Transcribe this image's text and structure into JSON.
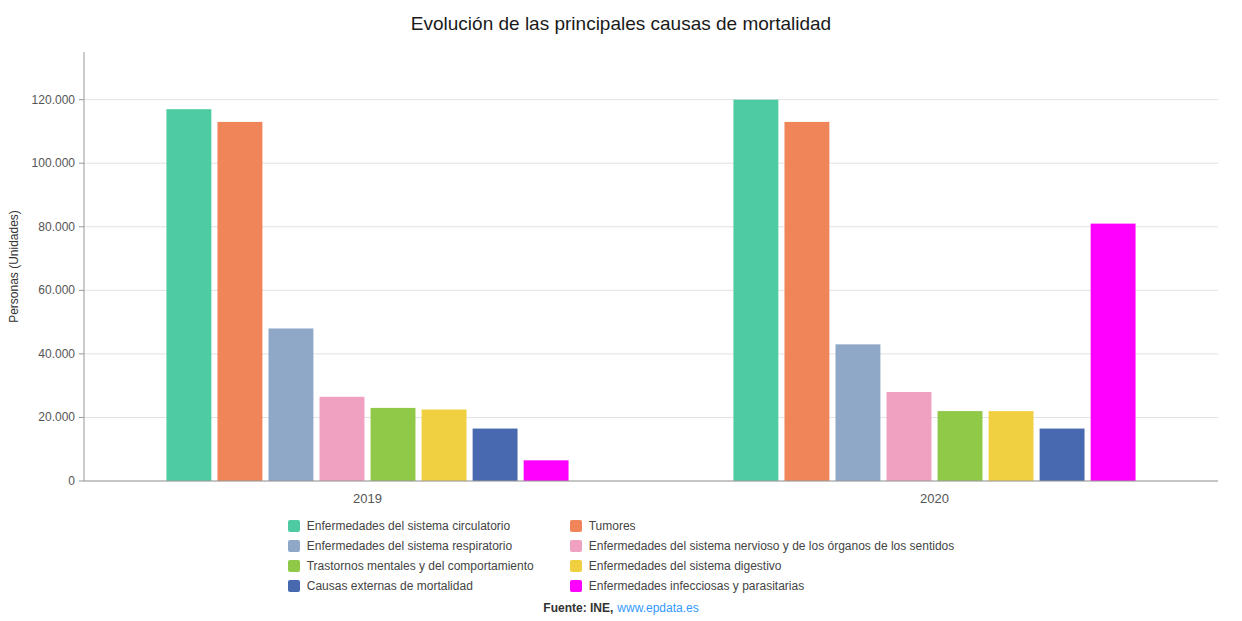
{
  "chart_data": {
    "type": "bar",
    "title": "Evolución de las principales causas de mortalidad",
    "y_label": "Personas (Unidades)",
    "categories": [
      "2019",
      "2020"
    ],
    "series": [
      {
        "name": "Enfermedades del sistema circulatorio",
        "color": "#4ecba3",
        "values": [
          117000,
          120000
        ]
      },
      {
        "name": "Tumores",
        "color": "#f0855a",
        "values": [
          113000,
          113000
        ]
      },
      {
        "name": "Enfermedades del sistema respiratorio",
        "color": "#8fa8c8",
        "values": [
          48000,
          43000
        ]
      },
      {
        "name": "Enfermedades del sistema nervioso y de los órganos de los sentidos",
        "color": "#f0a0c0",
        "values": [
          26500,
          28000
        ]
      },
      {
        "name": "Trastornos mentales y del comportamiento",
        "color": "#90c848",
        "values": [
          23000,
          22000
        ]
      },
      {
        "name": "Enfermedades del sistema digestivo",
        "color": "#f0d040",
        "values": [
          22500,
          22000
        ]
      },
      {
        "name": "Causas externas de mortalidad",
        "color": "#4868b0",
        "values": [
          16500,
          16500
        ]
      },
      {
        "name": "Enfermedades infecciosas y parasitarias",
        "color": "#ff00ff",
        "values": [
          6500,
          81000
        ]
      }
    ],
    "ylim": [
      0,
      135000
    ],
    "yticks": [
      0,
      {
        "value": 20000,
        "label": "20.000"
      },
      {
        "value": 40000,
        "label": "40.000"
      },
      {
        "value": 60000,
        "label": "60.000"
      },
      {
        "value": 80000,
        "label": "80.000"
      },
      {
        "value": 100000,
        "label": "100.000"
      },
      {
        "value": 120000,
        "label": "120.000"
      }
    ],
    "grid": true,
    "legend": "bottom",
    "annotations": [
      "Fuente: INE,",
      "www.epdata.es"
    ]
  }
}
